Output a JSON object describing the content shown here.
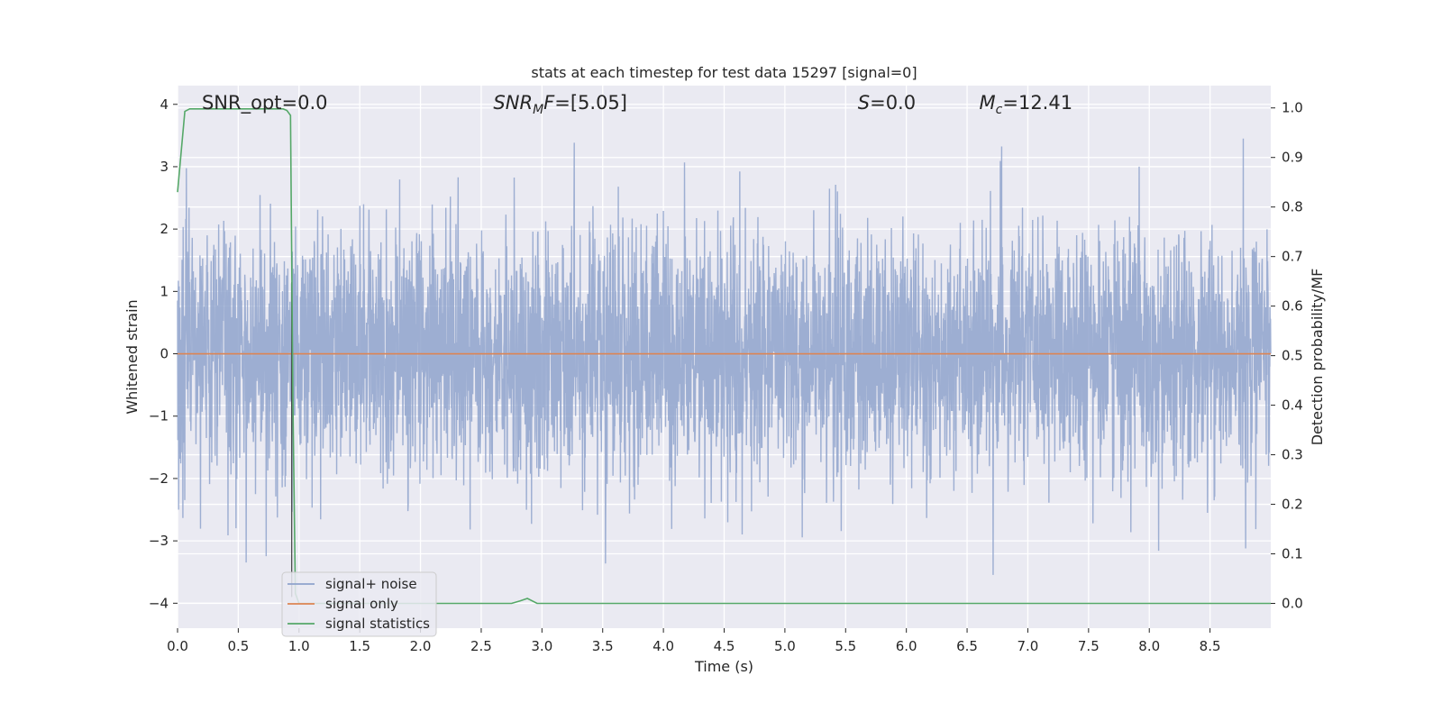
{
  "chart_data": {
    "type": "line",
    "title": "stats at each timestep for test data 15297 [signal=0]",
    "xlabel": "Time (s)",
    "ylabel_left": "Whitened strain",
    "ylabel_right": "Detection probability/MF",
    "xlim": [
      0.0,
      9.0
    ],
    "ylim_left": [
      -4.4,
      4.3
    ],
    "ylim_right": [
      -0.05,
      1.045
    ],
    "x_ticks": [
      0.0,
      0.5,
      1.0,
      1.5,
      2.0,
      2.5,
      3.0,
      3.5,
      4.0,
      4.5,
      5.0,
      5.5,
      6.0,
      6.5,
      7.0,
      7.5,
      8.0,
      8.5
    ],
    "x_tick_labels": [
      "0.0",
      "0.5",
      "1.0",
      "1.5",
      "2.0",
      "2.5",
      "3.0",
      "3.5",
      "4.0",
      "4.5",
      "5.0",
      "5.5",
      "6.0",
      "6.5",
      "7.0",
      "7.5",
      "8.0",
      "8.5"
    ],
    "y_left_ticks": [
      -4,
      -3,
      -2,
      -1,
      0,
      1,
      2,
      3,
      4
    ],
    "y_left_tick_labels": [
      "−4",
      "−3",
      "−2",
      "−1",
      "0",
      "1",
      "2",
      "3",
      "4"
    ],
    "y_right_ticks": [
      0.0,
      0.1,
      0.2,
      0.3,
      0.4,
      0.5,
      0.6,
      0.7,
      0.8,
      0.9,
      1.0
    ],
    "y_right_tick_labels": [
      "0.0",
      "0.1",
      "0.2",
      "0.3",
      "0.4",
      "0.5",
      "0.6",
      "0.7",
      "0.8",
      "0.9",
      "1.0"
    ],
    "grid": true,
    "legend_position": "bottom-left",
    "annotations": [
      {
        "text": "SNR_opt=0.0",
        "x": 0.2
      },
      {
        "text": "SNR",
        "sub": "M",
        "suffix": "F=[5.05]",
        "x": 2.6
      },
      {
        "text": "S",
        "sub": "",
        "suffix": "=0.0",
        "x": 5.6
      },
      {
        "text": "M",
        "sub": "c",
        "suffix": "=12.41",
        "x": 6.6
      }
    ],
    "series": [
      {
        "name": "signal+ noise",
        "axis": "left",
        "color": "#8fa3cc",
        "noise_std": 1.0,
        "noise_seed": 15297,
        "x_range": [
          0.0,
          9.0
        ],
        "n_points": 4096
      },
      {
        "name": "signal only",
        "axis": "left",
        "color": "#dd8452",
        "x": [
          0.0,
          9.0
        ],
        "y": [
          0.0,
          0.0
        ]
      },
      {
        "name": "signal statistics",
        "axis": "right",
        "color": "#55a868",
        "x": [
          0.0,
          0.06,
          0.1,
          0.2,
          0.5,
          0.87,
          0.9,
          0.93,
          0.95,
          0.97,
          1.0,
          2.5,
          2.75,
          2.82,
          2.88,
          2.96,
          3.0,
          9.0
        ],
        "y": [
          0.83,
          0.993,
          0.998,
          0.998,
          0.998,
          0.998,
          0.995,
          0.985,
          0.4,
          0.02,
          0.0,
          0.0,
          0.0,
          0.005,
          0.01,
          0.0,
          0.0,
          0.0
        ]
      }
    ],
    "marker_line": {
      "x": 0.94,
      "color": "#404040"
    }
  }
}
